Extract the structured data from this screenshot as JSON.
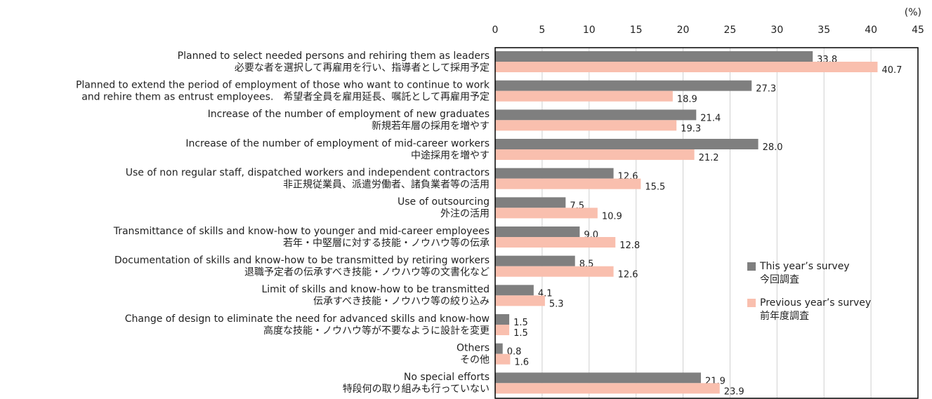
{
  "chart_data": {
    "type": "bar",
    "orientation": "horizontal",
    "axis_label": "(%)",
    "categories": [
      [
        "Planned to select needed persons and rehiring them as leaders",
        "必要な者を選択して再雇用を行い、指導者として採用予定"
      ],
      [
        "Planned to extend the period of employment of those who want to continue to work",
        "and rehire them as entrust employees.　希望者全員を雇用延長、嘱託として再雇用予定"
      ],
      [
        "Increase of the number of employment of new graduates",
        "新規若年層の採用を増やす"
      ],
      [
        "Increase of the number of employment of mid-career workers",
        "中途採用を増やす"
      ],
      [
        "Use of non regular staff, dispatched workers and independent contractors",
        "非正規従業員、派遣労働者、諸負業者等の活用"
      ],
      [
        "Use of outsourcing",
        "外注の活用"
      ],
      [
        "Transmittance of skills and know-how to younger and mid-career employees",
        "若年・中堅層に対する技能・ノウハウ等の伝承"
      ],
      [
        "Documentation of skills and know-how to be transmitted by retiring workers",
        "退職予定者の伝承すべき技能・ノウハウ等の文書化など"
      ],
      [
        "Limit of skills and know-how to be transmitted",
        "伝承すべき技能・ノウハウ等の絞り込み"
      ],
      [
        "Change of design to eliminate the need for advanced skills and know-how",
        "高度な技能・ノウハウ等が不要なように設計を変更"
      ],
      [
        "Others",
        "その他"
      ],
      [
        "No special efforts",
        "特段何の取り組みも行っていない"
      ]
    ],
    "series": [
      {
        "name": [
          "This year’s survey",
          "今回調査"
        ],
        "color": "#7f7f7f",
        "values": [
          33.8,
          27.3,
          21.4,
          28.0,
          12.6,
          7.5,
          9.0,
          8.5,
          4.1,
          1.5,
          0.8,
          21.9
        ],
        "value_labels": [
          "33.8",
          "27.3",
          "21.4",
          "28.0",
          "12.6",
          "7.5",
          "9.0",
          "8.5",
          "4.1",
          "1.5",
          "0.8",
          "21.9"
        ]
      },
      {
        "name": [
          "Previous year’s survey",
          "前年度調査"
        ],
        "color": "#f9bfae",
        "values": [
          40.7,
          18.9,
          19.3,
          21.2,
          15.5,
          10.9,
          12.8,
          12.6,
          5.3,
          1.5,
          1.6,
          23.9
        ],
        "value_labels": [
          "40.7",
          "18.9",
          "19.3",
          "21.2",
          "15.5",
          "10.9",
          "12.8",
          "12.6",
          "5.3",
          "1.5",
          "1.6",
          "23.9"
        ]
      }
    ],
    "xlim": [
      0,
      45
    ],
    "xticks": [
      0,
      5,
      10,
      15,
      20,
      25,
      30,
      35,
      40,
      45
    ],
    "grid": true
  }
}
